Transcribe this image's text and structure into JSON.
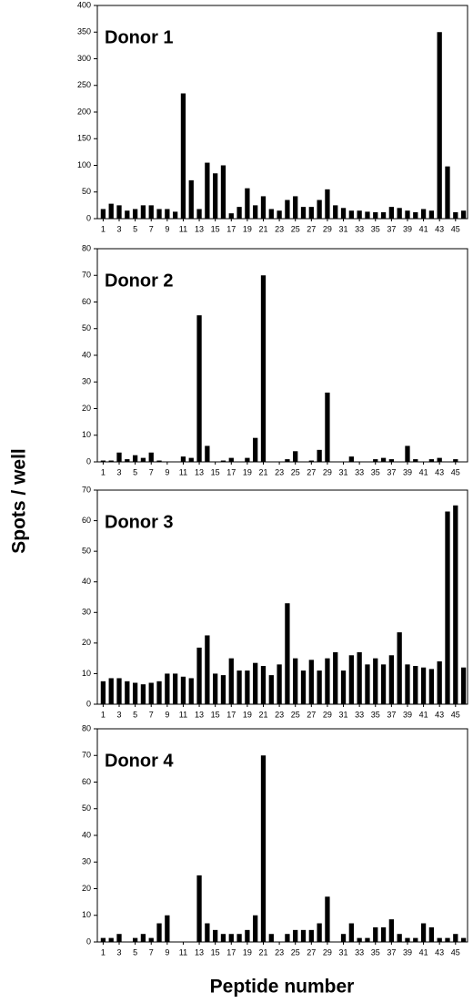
{
  "ylabel": "Spots / well",
  "xlabel": "Peptide number",
  "chart_data": [
    {
      "type": "bar",
      "title": "Donor 1",
      "color": "#000000",
      "categories": [
        1,
        null,
        3,
        null,
        5,
        null,
        7,
        null,
        9,
        null,
        11,
        null,
        13,
        null,
        15,
        null,
        17,
        null,
        19,
        null,
        21,
        null,
        23,
        null,
        25,
        null,
        27,
        null,
        29,
        null,
        31,
        null,
        33,
        null,
        35,
        null,
        37,
        null,
        39,
        null,
        41,
        null,
        43,
        null,
        45,
        null
      ],
      "values": [
        18,
        28,
        25,
        15,
        18,
        25,
        25,
        18,
        18,
        13,
        235,
        72,
        18,
        105,
        85,
        100,
        10,
        22,
        57,
        25,
        42,
        18,
        15,
        35,
        42,
        22,
        22,
        35,
        55,
        25,
        20,
        15,
        15,
        13,
        12,
        12,
        22,
        20,
        15,
        12,
        18,
        15,
        350,
        98,
        12,
        15
      ],
      "ylim": [
        0,
        400
      ],
      "yticks": [
        0,
        50,
        100,
        150,
        200,
        250,
        300,
        350,
        400
      ]
    },
    {
      "type": "bar",
      "title": "Donor 2",
      "color": "#000000",
      "categories": [
        1,
        null,
        3,
        null,
        5,
        null,
        7,
        null,
        9,
        null,
        11,
        null,
        13,
        null,
        15,
        null,
        17,
        null,
        19,
        null,
        21,
        null,
        23,
        null,
        25,
        null,
        27,
        null,
        29,
        null,
        31,
        null,
        33,
        null,
        35,
        null,
        37,
        null,
        39,
        null,
        41,
        null,
        43,
        null,
        45,
        null
      ],
      "values": [
        0.5,
        0.5,
        3.5,
        1,
        2.5,
        1.5,
        3.5,
        0.5,
        0,
        0,
        2,
        1.5,
        55,
        6,
        0,
        0.5,
        1.5,
        0,
        1.5,
        9,
        70,
        0,
        0,
        1,
        4,
        0,
        0.5,
        4.5,
        26,
        0,
        0,
        2,
        0,
        0,
        1,
        1.5,
        1,
        0,
        6,
        1,
        0,
        1,
        1.5,
        0,
        1,
        0
      ],
      "ylim": [
        0,
        80
      ],
      "yticks": [
        0,
        10,
        20,
        30,
        40,
        50,
        60,
        70,
        80
      ]
    },
    {
      "type": "bar",
      "title": "Donor 3",
      "color": "#000000",
      "categories": [
        1,
        null,
        3,
        null,
        5,
        null,
        7,
        null,
        9,
        null,
        11,
        null,
        13,
        null,
        15,
        null,
        17,
        null,
        19,
        null,
        21,
        null,
        23,
        null,
        25,
        null,
        27,
        null,
        29,
        null,
        31,
        null,
        33,
        null,
        35,
        null,
        37,
        null,
        39,
        null,
        41,
        null,
        43,
        null,
        45,
        null
      ],
      "values": [
        7.5,
        8.5,
        8.5,
        7.5,
        7,
        6.5,
        7,
        7.5,
        10,
        10,
        9,
        8.5,
        18.5,
        22.5,
        10,
        9.5,
        15,
        11,
        11,
        13.5,
        12.5,
        9.5,
        13,
        33,
        15,
        11,
        14.5,
        11,
        15,
        17,
        11,
        16,
        17,
        13,
        15,
        13,
        16,
        23.5,
        13,
        12.5,
        12,
        11.5,
        14,
        63,
        65,
        12
      ],
      "ylim": [
        0,
        70
      ],
      "yticks": [
        0,
        10,
        20,
        30,
        40,
        50,
        60,
        70
      ]
    },
    {
      "type": "bar",
      "title": "Donor 4",
      "color": "#000000",
      "categories": [
        1,
        null,
        3,
        null,
        5,
        null,
        7,
        null,
        9,
        null,
        11,
        null,
        13,
        null,
        15,
        null,
        17,
        null,
        19,
        null,
        21,
        null,
        23,
        null,
        25,
        null,
        27,
        null,
        29,
        null,
        31,
        null,
        33,
        null,
        35,
        null,
        37,
        null,
        39,
        null,
        41,
        null,
        43,
        null,
        45,
        null
      ],
      "values": [
        1.5,
        1.5,
        3,
        0,
        1.5,
        3,
        1.5,
        7,
        10,
        0,
        0,
        0,
        25,
        7,
        4.5,
        3,
        3,
        3,
        4.5,
        10,
        70,
        3,
        0,
        3,
        4.5,
        4.5,
        4.5,
        7,
        17,
        0,
        3,
        7,
        1.5,
        1.5,
        5.5,
        5.5,
        8.5,
        3,
        1.5,
        1.5,
        7,
        5.5,
        1.5,
        1.5,
        3,
        1.5
      ],
      "ylim": [
        0,
        80
      ],
      "yticks": [
        0,
        10,
        20,
        30,
        40,
        50,
        60,
        70,
        80
      ]
    }
  ]
}
